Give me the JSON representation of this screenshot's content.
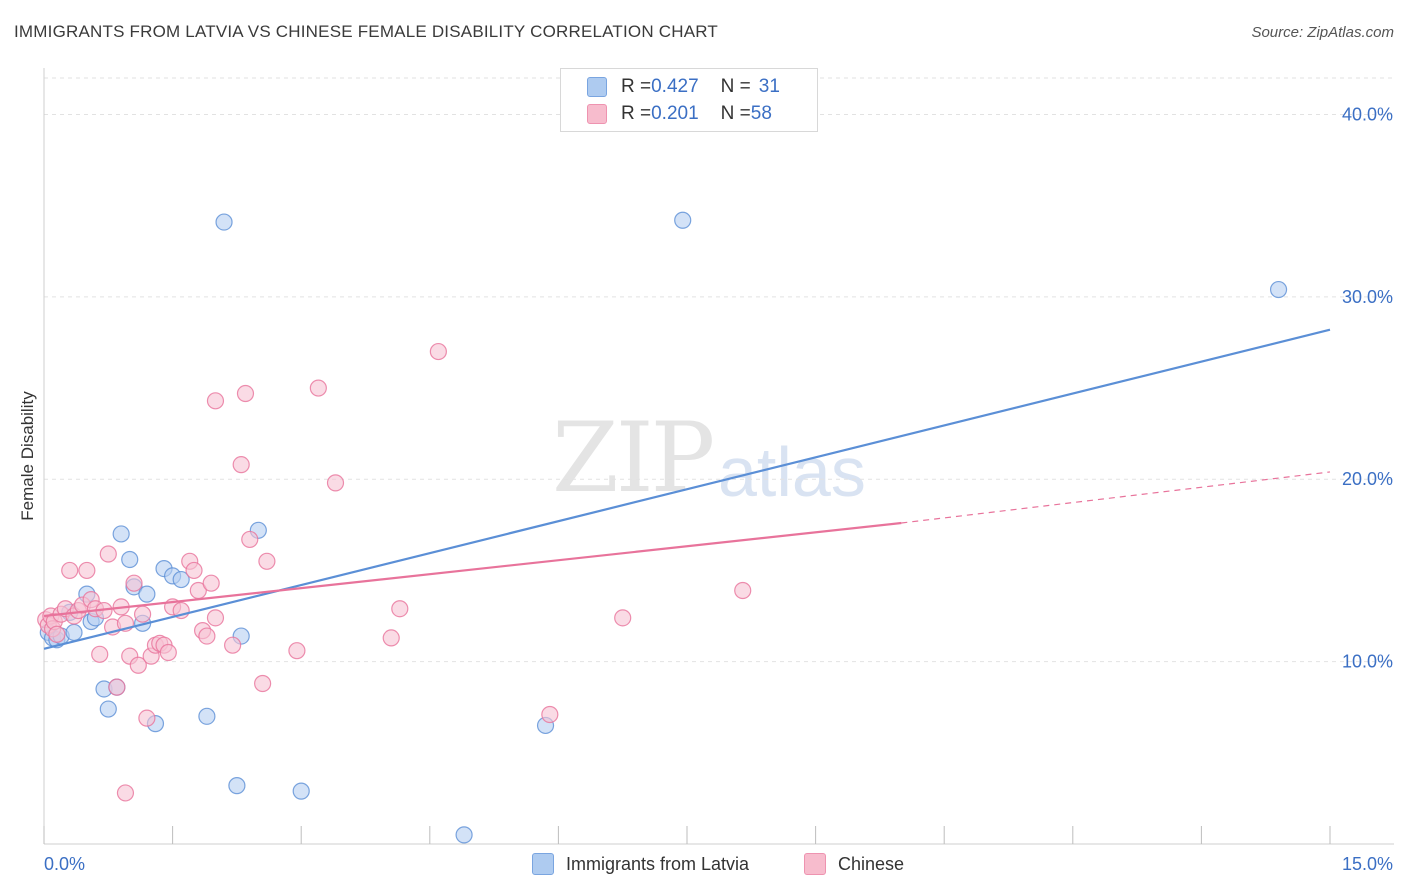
{
  "title": "IMMIGRANTS FROM LATVIA VS CHINESE FEMALE DISABILITY CORRELATION CHART",
  "source": "Source: ZipAtlas.com",
  "watermark": {
    "zip": "ZIP",
    "atlas": "atlas"
  },
  "legend_top": {
    "rows": [
      {
        "r_label": "R = ",
        "r_value": "0.427",
        "n_label": "N = ",
        "n_value": "31",
        "color": "#aecbf0"
      },
      {
        "r_label": "R = ",
        "r_value": "0.201",
        "n_label": "N = ",
        "n_value": "58",
        "color": "#f7bccd"
      }
    ]
  },
  "legend_bottom": {
    "items": [
      {
        "label": "Immigrants from Latvia",
        "color": "#aecbf0"
      },
      {
        "label": "Chinese",
        "color": "#f7bccd"
      }
    ]
  },
  "chart_data": {
    "type": "scatter",
    "title": "IMMIGRANTS FROM LATVIA VS CHINESE FEMALE DISABILITY CORRELATION CHART",
    "xlabel": "",
    "ylabel": "Female Disability",
    "xlim": [
      0,
      15
    ],
    "ylim": [
      0,
      42
    ],
    "x_ticks": [
      0,
      1.5,
      3,
      4.5,
      6,
      7.5,
      9,
      10.5,
      12,
      13.5,
      15
    ],
    "x_tick_labels": [
      {
        "value": 0,
        "label": "0.0%"
      },
      {
        "value": 15,
        "label": "15.0%"
      }
    ],
    "y_ticks": [
      {
        "value": 10,
        "label": "10.0%"
      },
      {
        "value": 20,
        "label": "20.0%"
      },
      {
        "value": 30,
        "label": "30.0%"
      },
      {
        "value": 40,
        "label": "40.0%"
      }
    ],
    "grid": "horizontal dashed",
    "legend_position": "top-center",
    "series": [
      {
        "name": "Immigrants from Latvia",
        "color": "#5b8fd6",
        "fill": "#b5cff2",
        "points": [
          [
            0.05,
            11.6
          ],
          [
            0.1,
            11.3
          ],
          [
            0.15,
            11.2
          ],
          [
            0.2,
            11.4
          ],
          [
            0.3,
            12.7
          ],
          [
            0.35,
            11.6
          ],
          [
            0.5,
            13.7
          ],
          [
            0.55,
            12.2
          ],
          [
            0.6,
            12.4
          ],
          [
            0.7,
            8.5
          ],
          [
            0.75,
            7.4
          ],
          [
            0.85,
            8.6
          ],
          [
            0.9,
            17.0
          ],
          [
            1.0,
            15.6
          ],
          [
            1.05,
            14.1
          ],
          [
            1.15,
            12.1
          ],
          [
            1.2,
            13.7
          ],
          [
            1.3,
            6.6
          ],
          [
            1.4,
            15.1
          ],
          [
            1.5,
            14.7
          ],
          [
            1.6,
            14.5
          ],
          [
            1.9,
            7.0
          ],
          [
            2.1,
            34.1
          ],
          [
            2.25,
            3.2
          ],
          [
            2.3,
            11.4
          ],
          [
            2.5,
            17.2
          ],
          [
            3.0,
            2.9
          ],
          [
            4.9,
            0.5
          ],
          [
            5.85,
            6.5
          ],
          [
            7.45,
            34.2
          ],
          [
            14.4,
            30.4
          ]
        ],
        "trend": {
          "x0": 0,
          "y0": 10.7,
          "x1": 15,
          "y1": 28.2
        }
      },
      {
        "name": "Chinese",
        "color": "#e8739b",
        "fill": "#f7c3d3",
        "points": [
          [
            0.02,
            12.3
          ],
          [
            0.05,
            12.0
          ],
          [
            0.08,
            12.5
          ],
          [
            0.1,
            11.8
          ],
          [
            0.12,
            12.2
          ],
          [
            0.15,
            11.5
          ],
          [
            0.2,
            12.6
          ],
          [
            0.25,
            12.9
          ],
          [
            0.3,
            15.0
          ],
          [
            0.35,
            12.5
          ],
          [
            0.4,
            12.8
          ],
          [
            0.45,
            13.1
          ],
          [
            0.5,
            15.0
          ],
          [
            0.55,
            13.4
          ],
          [
            0.6,
            12.9
          ],
          [
            0.65,
            10.4
          ],
          [
            0.7,
            12.8
          ],
          [
            0.75,
            15.9
          ],
          [
            0.8,
            11.9
          ],
          [
            0.85,
            8.6
          ],
          [
            0.9,
            13.0
          ],
          [
            0.95,
            12.1
          ],
          [
            1.0,
            10.3
          ],
          [
            1.05,
            14.3
          ],
          [
            1.1,
            9.8
          ],
          [
            1.15,
            12.6
          ],
          [
            1.2,
            6.9
          ],
          [
            1.25,
            10.3
          ],
          [
            1.3,
            10.9
          ],
          [
            1.35,
            11.0
          ],
          [
            1.4,
            10.9
          ],
          [
            1.45,
            10.5
          ],
          [
            1.5,
            13.0
          ],
          [
            1.6,
            12.8
          ],
          [
            1.7,
            15.5
          ],
          [
            1.75,
            15.0
          ],
          [
            1.8,
            13.9
          ],
          [
            1.85,
            11.7
          ],
          [
            1.9,
            11.4
          ],
          [
            1.95,
            14.3
          ],
          [
            2.0,
            12.4
          ],
          [
            2.0,
            24.3
          ],
          [
            2.2,
            10.9
          ],
          [
            2.3,
            20.8
          ],
          [
            2.35,
            24.7
          ],
          [
            2.4,
            16.7
          ],
          [
            2.55,
            8.8
          ],
          [
            2.6,
            15.5
          ],
          [
            2.95,
            10.6
          ],
          [
            3.2,
            25.0
          ],
          [
            3.4,
            19.8
          ],
          [
            4.05,
            11.3
          ],
          [
            4.15,
            12.9
          ],
          [
            4.6,
            27.0
          ],
          [
            5.9,
            7.1
          ],
          [
            6.75,
            12.4
          ],
          [
            8.15,
            13.9
          ],
          [
            0.95,
            2.8
          ]
        ],
        "trend": {
          "x0": 0,
          "y0": 12.5,
          "x1": 10.0,
          "y1": 17.6
        },
        "trend_dashed": {
          "x0": 10.0,
          "y0": 17.6,
          "x1": 15,
          "y1": 20.4
        }
      }
    ]
  }
}
